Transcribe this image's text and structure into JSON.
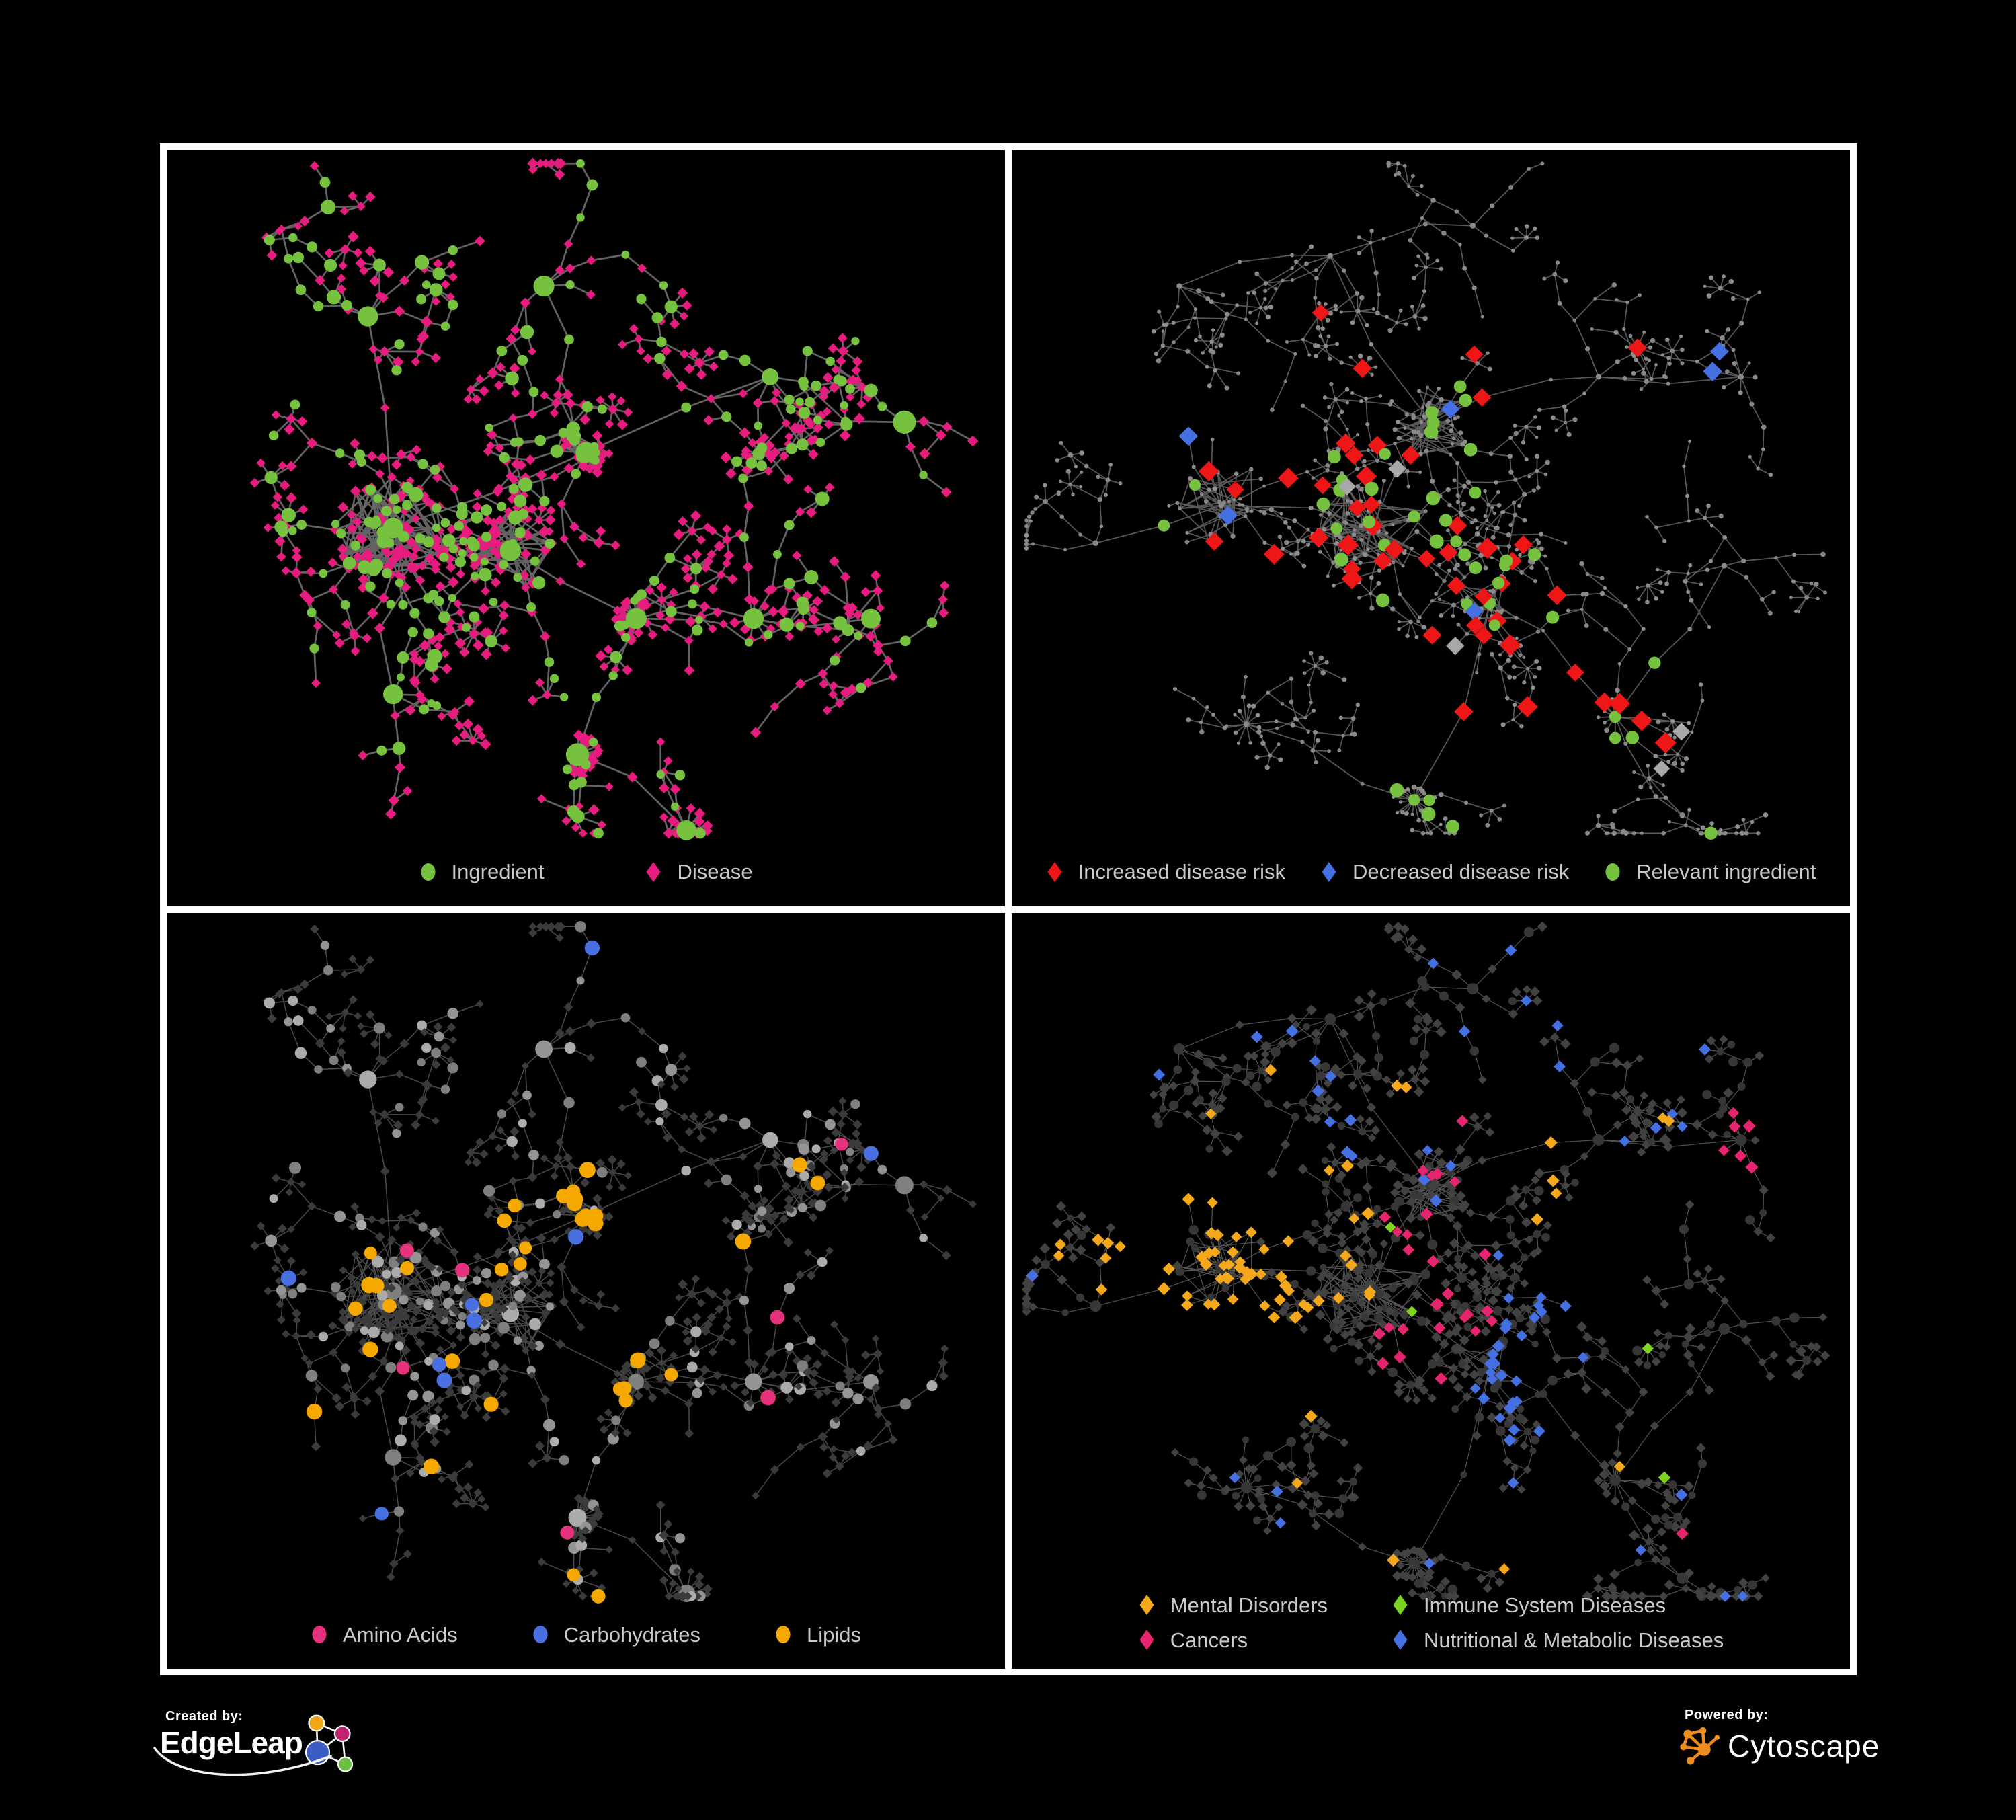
{
  "figure": {
    "background": "#000000",
    "frame_color": "#ffffff",
    "legend_text_color": "#c9c9c9"
  },
  "panels": [
    {
      "id": "ingredient-disease",
      "position": "top-left",
      "legend": [
        {
          "label": "Ingredient",
          "shape": "circle",
          "color": "#76c13d"
        },
        {
          "label": "Disease",
          "shape": "diamond",
          "color": "#e61c7e"
        }
      ],
      "network": {
        "edge_color": "#696969",
        "edge_width": 2.7,
        "edge_opacity": 0.95,
        "ingredient_color": "#76c13d",
        "disease_color": "#e61c7e"
      }
    },
    {
      "id": "disease-risk",
      "position": "top-right",
      "legend": [
        {
          "label": "Increased disease risk",
          "shape": "diamond",
          "color": "#ee1616"
        },
        {
          "label": "Decreased disease risk",
          "shape": "diamond",
          "color": "#4570e1"
        },
        {
          "label": "Relevant ingredient",
          "shape": "circle",
          "color": "#76c13d"
        }
      ],
      "network": {
        "edge_color": "#5e5e5e",
        "edge_width": 1.7,
        "edge_opacity": 0.95,
        "base_color": "#8a8a8a",
        "neutral_color": "#a8a8a8",
        "increased_color": "#ee1616",
        "decreased_color": "#4570e1",
        "relevant_color": "#76c13d"
      }
    },
    {
      "id": "ingredient-classes",
      "position": "bottom-left",
      "legend": [
        {
          "label": "Amino Acids",
          "shape": "circle",
          "color": "#e6317f"
        },
        {
          "label": "Carbohydrates",
          "shape": "circle",
          "color": "#4a6fe1"
        },
        {
          "label": "Lipids",
          "shape": "circle",
          "color": "#f5a800"
        }
      ],
      "network": {
        "edge_color": "#6b6b6b",
        "edge_width": 1.5,
        "edge_opacity": 0.7,
        "amino_color": "#e6317f",
        "carb_color": "#4a6fe1",
        "lipid_color": "#f5a800",
        "other_colors": [
          "#ababab",
          "#949494",
          "#7f7f7f"
        ],
        "disease_color": "#3b3b3b"
      }
    },
    {
      "id": "disease-classes",
      "position": "bottom-right",
      "legend": [
        {
          "label": "Mental Disorders",
          "shape": "diamond",
          "color": "#f5a81c"
        },
        {
          "label": "Immune System Diseases",
          "shape": "diamond",
          "color": "#7ed321"
        },
        {
          "label": "Cancers",
          "shape": "diamond",
          "color": "#e6246f"
        },
        {
          "label": "Nutritional & Metabolic Diseases",
          "shape": "diamond",
          "color": "#4570e1"
        }
      ],
      "network": {
        "edge_color": "#707070",
        "edge_width": 1.2,
        "edge_opacity": 0.75,
        "ingredient_color": "#373737",
        "disease_default_color": "#424242",
        "mental_color": "#f5a81c",
        "immune_color": "#7ed321",
        "cancer_color": "#e6246f",
        "nutritional_color": "#4570e1"
      }
    }
  ],
  "footer": {
    "created_by_label": "Created by:",
    "created_by_name": "EdgeLeap",
    "powered_by_label": "Powered by:",
    "powered_by_name": "Cytoscape",
    "text_color": "#ffffff",
    "edgeleap_logo_colors": {
      "orange": "#f2a71b",
      "magenta": "#c0246e",
      "blue": "#3c5cc5",
      "green": "#6fbe44"
    },
    "cytoscape_logo_color": "#ee8c1e"
  }
}
